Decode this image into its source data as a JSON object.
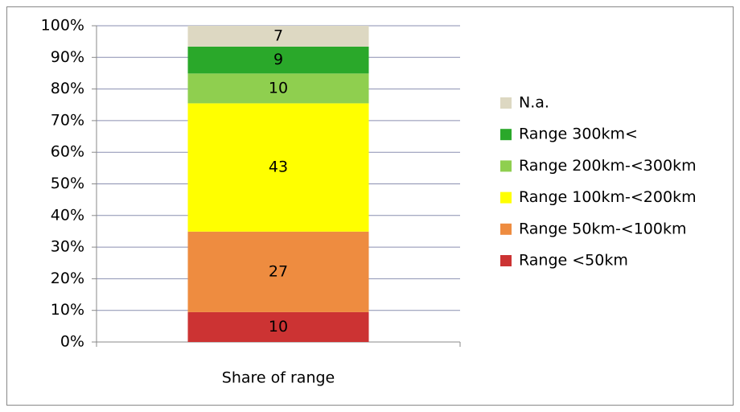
{
  "chart_data": {
    "type": "bar",
    "stacked": "percent",
    "categories": [
      "Share of range"
    ],
    "series": [
      {
        "name": "Range <50km",
        "color": "#cc3333",
        "values": [
          10
        ]
      },
      {
        "name": "Range 50km-<100km",
        "color": "#ee8c40",
        "values": [
          27
        ]
      },
      {
        "name": "Range 100km-<200km",
        "color": "#ffff00",
        "values": [
          43
        ]
      },
      {
        "name": "Range 200km-<300km",
        "color": "#8fcf4f",
        "values": [
          10
        ]
      },
      {
        "name": "Range 300km<",
        "color": "#2aa82a",
        "values": [
          9
        ]
      },
      {
        "name": "N.a.",
        "color": "#ddd8c2",
        "values": [
          7
        ]
      }
    ],
    "ylim": [
      0,
      100
    ],
    "yticks": [
      {
        "value": 0,
        "label": "0%"
      },
      {
        "value": 10,
        "label": "10%"
      },
      {
        "value": 20,
        "label": "20%"
      },
      {
        "value": 30,
        "label": "30%"
      },
      {
        "value": 40,
        "label": "40%"
      },
      {
        "value": 50,
        "label": "50%"
      },
      {
        "value": 60,
        "label": "60%"
      },
      {
        "value": 70,
        "label": "70%"
      },
      {
        "value": 80,
        "label": "80%"
      },
      {
        "value": 90,
        "label": "90%"
      },
      {
        "value": 100,
        "label": "100%"
      }
    ],
    "grid": true,
    "legend": "right",
    "data_labels": true
  }
}
